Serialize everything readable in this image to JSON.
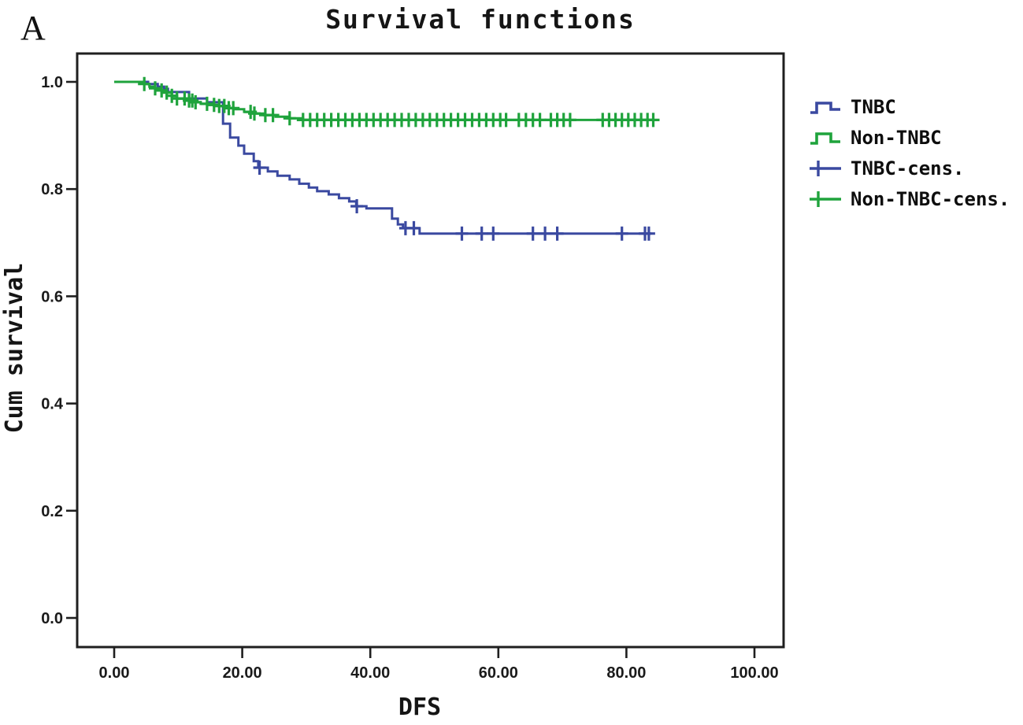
{
  "panel_label": "A",
  "title": "Survival functions",
  "x_axis": {
    "label": "DFS",
    "tick_labels": [
      "0.00",
      "20.00",
      "40.00",
      "60.00",
      "80.00",
      "100.00"
    ],
    "tick_values": [
      0,
      20,
      40,
      60,
      80,
      100
    ]
  },
  "y_axis": {
    "label": "Cum survival",
    "tick_labels": [
      "1.0",
      "0.8",
      "0.6",
      "0.4",
      "0.2",
      "0.0"
    ],
    "tick_values": [
      1.0,
      0.8,
      0.6,
      0.4,
      0.2,
      0.0
    ]
  },
  "legend": [
    {
      "label": "TNBC",
      "symbol": "step-line",
      "color": "#3a49a0"
    },
    {
      "label": "Non-TNBC",
      "symbol": "step-line",
      "color": "#1fa33c"
    },
    {
      "label": "TNBC-cens.",
      "symbol": "censor-plus",
      "color": "#3a49a0"
    },
    {
      "label": "Non-TNBC-cens.",
      "symbol": "censor-plus",
      "color": "#1fa33c"
    }
  ],
  "colors": {
    "tnbc": "#3a49a0",
    "non_tnbc": "#1fa33c",
    "axis": "#1f1f1f",
    "text": "#111111",
    "background": "#ffffff"
  },
  "chart_data": {
    "type": "line",
    "subtype": "kaplan-meier-step",
    "title": "Survival functions",
    "xlabel": "DFS",
    "ylabel": "Cum survival",
    "xlim": [
      -5.8,
      104.5
    ],
    "ylim": [
      -0.05,
      1.053
    ],
    "x_ticks": [
      0,
      20,
      40,
      60,
      80,
      100
    ],
    "y_ticks": [
      0.0,
      0.2,
      0.4,
      0.6,
      0.8,
      1.0
    ],
    "grid": false,
    "legend_position": "right",
    "series": [
      {
        "name": "TNBC",
        "color": "#3a49a0",
        "final_value": 0.717,
        "step_points": [
          [
            0,
            1.0
          ],
          [
            5.3,
            0.996
          ],
          [
            6.8,
            0.991
          ],
          [
            7.8,
            0.987
          ],
          [
            8.4,
            0.981
          ],
          [
            11.7,
            0.969
          ],
          [
            14.5,
            0.962
          ],
          [
            17.0,
            0.922
          ],
          [
            18.1,
            0.896
          ],
          [
            19.4,
            0.881
          ],
          [
            20.3,
            0.866
          ],
          [
            21.8,
            0.852
          ],
          [
            22.5,
            0.84
          ],
          [
            24.0,
            0.833
          ],
          [
            25.5,
            0.825
          ],
          [
            27.4,
            0.818
          ],
          [
            28.9,
            0.81
          ],
          [
            30.4,
            0.803
          ],
          [
            31.7,
            0.796
          ],
          [
            33.5,
            0.79
          ],
          [
            35.1,
            0.783
          ],
          [
            36.7,
            0.777
          ],
          [
            37.8,
            0.768
          ],
          [
            39.4,
            0.764
          ],
          [
            43.4,
            0.745
          ],
          [
            44.3,
            0.734
          ],
          [
            45.1,
            0.727
          ],
          [
            47.7,
            0.717
          ],
          [
            83.6,
            0.717
          ]
        ],
        "censor_x": [
          22.7,
          37.9,
          45.5,
          46.8,
          54.3,
          57.4,
          59.2,
          65.4,
          67.3,
          69.2,
          79.3,
          82.9,
          83.5
        ]
      },
      {
        "name": "Non-TNBC",
        "color": "#1fa33c",
        "final_value": 0.929,
        "step_points": [
          [
            0,
            1.0
          ],
          [
            4.7,
            0.996
          ],
          [
            5.5,
            0.991
          ],
          [
            6.4,
            0.988
          ],
          [
            7.4,
            0.984
          ],
          [
            8.2,
            0.98
          ],
          [
            9.0,
            0.974
          ],
          [
            9.8,
            0.969
          ],
          [
            11.1,
            0.965
          ],
          [
            12.3,
            0.962
          ],
          [
            13.5,
            0.959
          ],
          [
            14.8,
            0.957
          ],
          [
            16.0,
            0.955
          ],
          [
            17.8,
            0.951
          ],
          [
            18.7,
            0.949
          ],
          [
            20.3,
            0.944
          ],
          [
            21.5,
            0.941
          ],
          [
            23.4,
            0.938
          ],
          [
            25.2,
            0.935
          ],
          [
            27.1,
            0.932
          ],
          [
            29.5,
            0.929
          ],
          [
            84.3,
            0.929
          ]
        ],
        "censor_x": [
          4.7,
          6.4,
          7.4,
          8.2,
          9.0,
          9.8,
          11.0,
          11.7,
          12.2,
          12.7,
          14.5,
          15.6,
          16.4,
          17.2,
          17.9,
          18.6,
          21.3,
          21.9,
          23.6,
          24.8,
          27.4,
          29.5,
          30.6,
          31.7,
          32.8,
          33.9,
          35.0,
          36.1,
          37.2,
          38.3,
          39.4,
          40.5,
          41.6,
          42.7,
          43.8,
          44.9,
          46.0,
          47.1,
          48.2,
          49.3,
          50.4,
          51.5,
          52.6,
          53.7,
          54.8,
          55.9,
          57.0,
          58.1,
          59.2,
          60.3,
          61.2,
          63.2,
          64.3,
          65.4,
          66.5,
          68.2,
          69.2,
          70.2,
          71.2,
          76.3,
          77.3,
          78.3,
          79.3,
          80.3,
          81.3,
          82.3,
          83.3,
          84.2
        ]
      }
    ]
  }
}
